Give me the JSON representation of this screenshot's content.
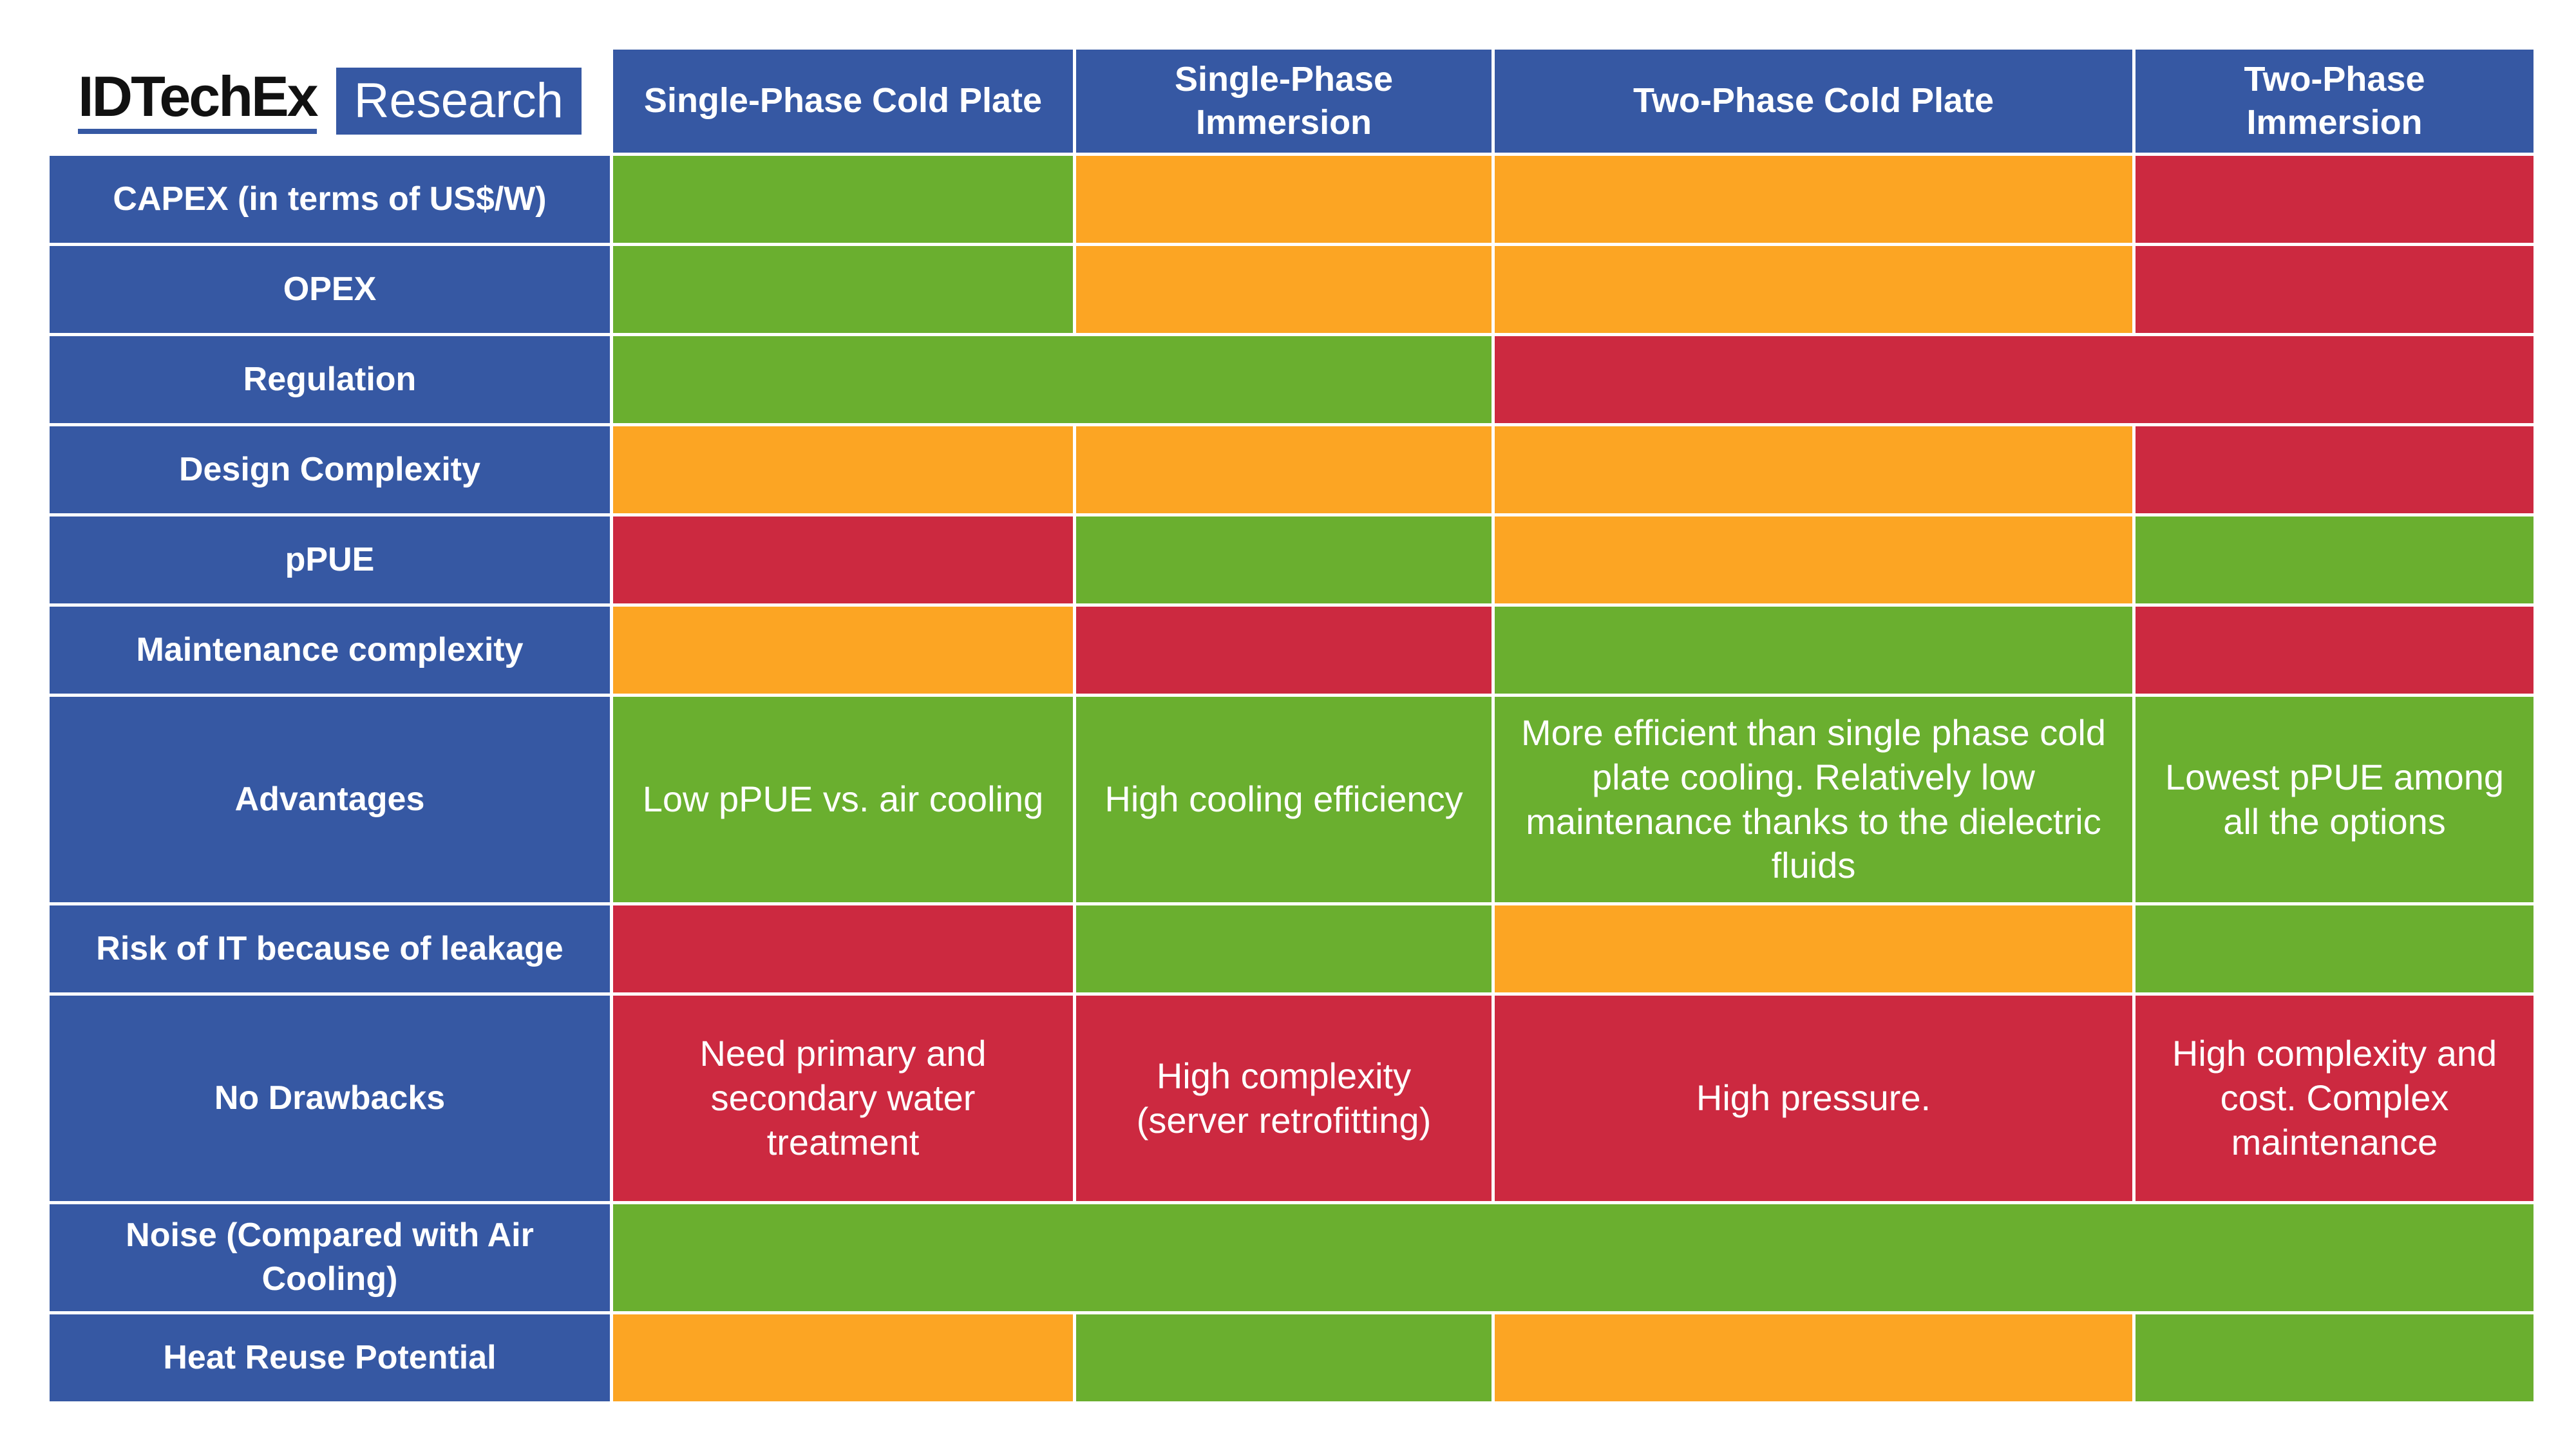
{
  "logo": {
    "brand": "IDTechEx",
    "product": "Research"
  },
  "table": {
    "columns": [
      "Single-Phase Cold Plate",
      "Single-Phase Immersion",
      "Two-Phase Cold Plate",
      "Two-Phase Immersion"
    ],
    "rows": [
      {
        "label": "CAPEX (in terms of US$/W)",
        "cells": [
          {
            "color": "#6aaf2f"
          },
          {
            "color": "#fca523"
          },
          {
            "color": "#fca523"
          },
          {
            "color": "#cc2940"
          }
        ]
      },
      {
        "label": "OPEX",
        "cells": [
          {
            "color": "#6aaf2f"
          },
          {
            "color": "#fca523"
          },
          {
            "color": "#fca523"
          },
          {
            "color": "#cc2940"
          }
        ]
      },
      {
        "label": "Regulation",
        "cells": [
          {
            "color": "#6aaf2f",
            "span": 2
          },
          {
            "color": "#cc2940",
            "span": 2
          }
        ]
      },
      {
        "label": "Design Complexity",
        "cells": [
          {
            "color": "#fca523"
          },
          {
            "color": "#fca523"
          },
          {
            "color": "#fca523"
          },
          {
            "color": "#cc2940"
          }
        ]
      },
      {
        "label": "pPUE",
        "cells": [
          {
            "color": "#cc2940"
          },
          {
            "color": "#6aaf2f"
          },
          {
            "color": "#fca523"
          },
          {
            "color": "#6aaf2f"
          }
        ]
      },
      {
        "label": "Maintenance complexity",
        "cells": [
          {
            "color": "#fca523"
          },
          {
            "color": "#cc2940"
          },
          {
            "color": "#6aaf2f"
          },
          {
            "color": "#cc2940"
          }
        ]
      },
      {
        "label": "Advantages",
        "cells": [
          {
            "color": "#6aaf2f",
            "text": "Low pPUE vs. air cooling"
          },
          {
            "color": "#6aaf2f",
            "text": "High cooling efficiency"
          },
          {
            "color": "#6aaf2f",
            "text": "More efficient than single phase cold plate cooling. Relatively low maintenance thanks to the dielectric fluids"
          },
          {
            "color": "#6aaf2f",
            "text": "Lowest pPUE among all the options"
          }
        ]
      },
      {
        "label": "Risk of IT because of leakage",
        "cells": [
          {
            "color": "#cc2940"
          },
          {
            "color": "#6aaf2f"
          },
          {
            "color": "#fca523"
          },
          {
            "color": "#6aaf2f"
          }
        ]
      },
      {
        "label": "No Drawbacks",
        "cells": [
          {
            "color": "#cc2940",
            "text": "Need primary and secondary water treatment"
          },
          {
            "color": "#cc2940",
            "text": "High complexity (server retrofitting)"
          },
          {
            "color": "#cc2940",
            "text": "High pressure."
          },
          {
            "color": "#cc2940",
            "text": "High complexity and cost. Complex maintenance"
          }
        ]
      },
      {
        "label": "Noise (Compared with Air Cooling)",
        "cells": [
          {
            "color": "#6aaf2f",
            "span": 4
          }
        ]
      },
      {
        "label": "Heat Reuse Potential",
        "cells": [
          {
            "color": "#fca523"
          },
          {
            "color": "#6aaf2f"
          },
          {
            "color": "#fca523"
          },
          {
            "color": "#6aaf2f"
          }
        ]
      }
    ]
  }
}
